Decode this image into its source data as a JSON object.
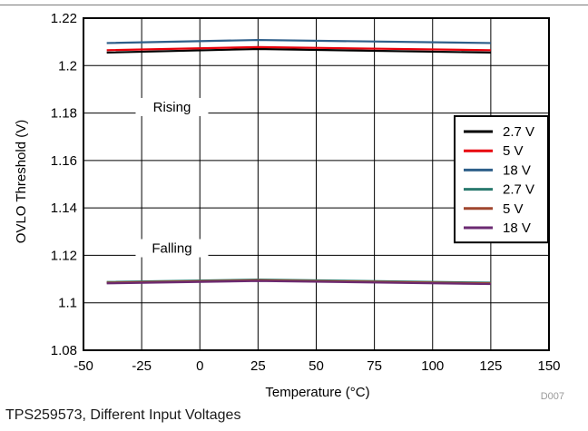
{
  "caption": "TPS259573, Different Input Voltages",
  "chart_data": {
    "type": "line",
    "xlabel": "Temperature (°C)",
    "ylabel": "OVLO Threshold (V)",
    "xlim": [
      -50,
      150
    ],
    "ylim": [
      1.08,
      1.22
    ],
    "xticks": [
      "-50",
      "-25",
      "0",
      "25",
      "50",
      "75",
      "100",
      "125",
      "150"
    ],
    "yticks": [
      "1.08",
      "1.1",
      "1.12",
      "1.14",
      "1.16",
      "1.18",
      "1.2",
      "1.22"
    ],
    "grid": true,
    "legend_position": "right",
    "watermark": "D007",
    "annotations": [
      "Rising",
      "Falling"
    ],
    "x": [
      -40,
      25,
      125
    ],
    "series": [
      {
        "name": "2.7 V",
        "color": "#000000",
        "values": [
          1.2055,
          1.207,
          1.2055
        ]
      },
      {
        "name": "5 V",
        "color": "#e8000b",
        "values": [
          1.2065,
          1.2078,
          1.2065
        ]
      },
      {
        "name": "18 V",
        "color": "#2e5f8a",
        "values": [
          1.2095,
          1.2108,
          1.2095
        ]
      },
      {
        "name": "2.7 V",
        "color": "#2a7a6e",
        "values": [
          1.1088,
          1.1098,
          1.1085
        ]
      },
      {
        "name": "5 V",
        "color": "#a0462e",
        "values": [
          1.1085,
          1.1095,
          1.1082
        ]
      },
      {
        "name": "18 V",
        "color": "#6b2a72",
        "values": [
          1.1082,
          1.1092,
          1.1079
        ]
      }
    ]
  }
}
